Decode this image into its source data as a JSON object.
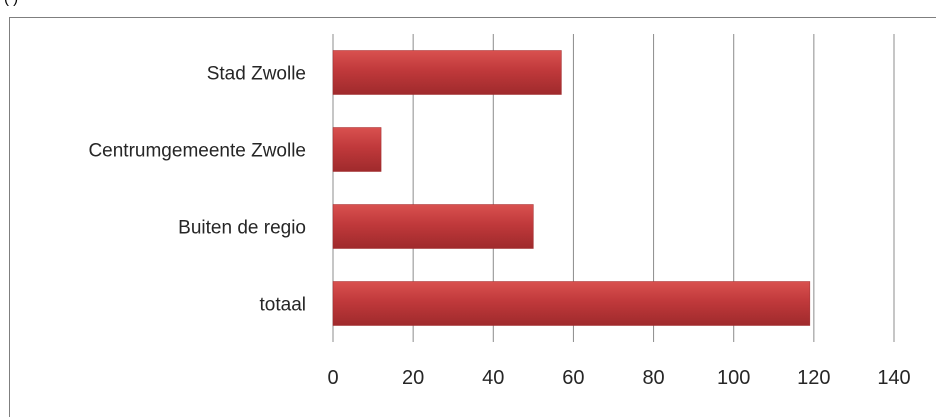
{
  "caption": {
    "text": "(  )"
  },
  "chart_data": {
    "type": "bar",
    "orientation": "horizontal",
    "categories": [
      "Stad Zwolle",
      "Centrumgemeente Zwolle",
      "Buiten de regio",
      "totaal"
    ],
    "values": [
      57,
      12,
      50,
      119
    ],
    "xlim": [
      0,
      140
    ],
    "xticks": [
      0,
      20,
      40,
      60,
      80,
      100,
      120,
      140
    ],
    "grid": "vertical",
    "colors": {
      "bar": "#c0393b",
      "bar_light": "#d9514f",
      "bar_dark": "#9f2a2c",
      "grid": "#8c8c8c",
      "axis_text": "#262626"
    }
  }
}
